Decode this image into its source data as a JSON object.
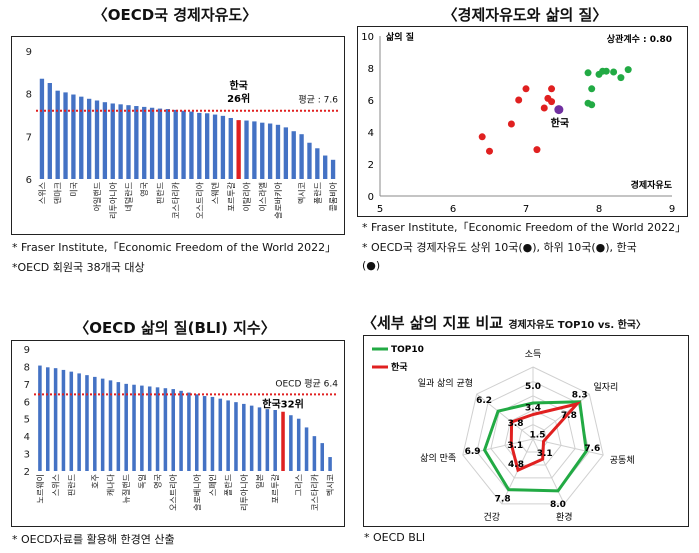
{
  "titles": {
    "freedom": "〈OECD국 경제자유도〉",
    "scatter": "〈경제자유도와 삶의 질〉",
    "bli": "〈OECD 삶의 질(BLI) 지수〉",
    "radar_main": "〈세부 삶의 지표 비교",
    "radar_sub": "경제자유도 TOP10 vs. 한국〉"
  },
  "notes": {
    "freedom": [
      "* Fraser Institute,「Economic Freedom of the World 2022」",
      "*OECD 회원국 38개국 대상"
    ],
    "scatter": [
      "* Fraser Institute,「Economic Freedom of the World 2022」",
      "* OECD국 경제자유도 상위 10국(●), 하위 10국(●), 한국",
      "(●)"
    ],
    "bli": [
      "* OECD자료를 활용해 한경연 산출"
    ],
    "radar": [
      "* OECD BLI"
    ]
  },
  "chart_data": [
    {
      "type": "bar",
      "title": "OECD국 경제자유도",
      "ylim": [
        6,
        9
      ],
      "yticks": [
        6,
        7,
        8,
        9
      ],
      "bar_color": "#4472c4",
      "highlight_color": "#e02020",
      "highlight_label": "한국",
      "highlight_label2": "26위",
      "reference_line": {
        "value": 7.6,
        "label": "평균 : 7.6",
        "color": "#e02020"
      },
      "labeled_categories": [
        "스위스",
        "덴마크",
        "미국",
        "아일랜드",
        "리투아니아",
        "네덜란드",
        "영국",
        "핀란드",
        "코스타리카",
        "오스트리아",
        "스웨덴",
        "포르투갈",
        "이탈리아",
        "이스라엘",
        "슬로바키아",
        "멕시코",
        "폴란드",
        "콜롬비아"
      ],
      "values": [
        8.35,
        8.25,
        8.07,
        8.03,
        7.98,
        7.93,
        7.88,
        7.84,
        7.8,
        7.77,
        7.75,
        7.73,
        7.71,
        7.69,
        7.67,
        7.65,
        7.64,
        7.62,
        7.6,
        7.58,
        7.55,
        7.54,
        7.51,
        7.48,
        7.43,
        7.38,
        7.37,
        7.35,
        7.32,
        7.3,
        7.27,
        7.21,
        7.12,
        7.05,
        6.85,
        6.72,
        6.55,
        6.45
      ],
      "highlight_index": 25
    },
    {
      "type": "scatter",
      "title": "경제자유도와 삶의 질",
      "ylabel": "삶의 질",
      "xlabel": "경제자유도",
      "annotation": "상관계수 : 0.80",
      "xlim": [
        5,
        9
      ],
      "ylim": [
        0,
        10
      ],
      "xticks": [
        5,
        6,
        7,
        8,
        9
      ],
      "yticks": [
        0,
        2,
        4,
        6,
        8,
        10
      ],
      "series": [
        {
          "color": "#22aa44",
          "points": [
            [
              7.85,
              7.7
            ],
            [
              8.0,
              7.6
            ],
            [
              8.05,
              7.8
            ],
            [
              8.1,
              7.8
            ],
            [
              8.2,
              7.75
            ],
            [
              8.3,
              7.4
            ],
            [
              8.4,
              7.9
            ],
            [
              7.9,
              6.7
            ],
            [
              7.85,
              5.8
            ],
            [
              7.9,
              5.7
            ]
          ]
        },
        {
          "color": "#e02020",
          "points": [
            [
              6.4,
              3.7
            ],
            [
              6.5,
              2.8
            ],
            [
              6.8,
              4.5
            ],
            [
              6.9,
              6.0
            ],
            [
              7.0,
              6.7
            ],
            [
              7.15,
              2.9
            ],
            [
              7.25,
              5.5
            ],
            [
              7.35,
              5.9
            ],
            [
              7.35,
              6.7
            ],
            [
              7.3,
              6.1
            ]
          ]
        },
        {
          "color": "#7030a0",
          "points": [
            [
              7.45,
              5.4
            ]
          ],
          "label": "한국"
        }
      ]
    },
    {
      "type": "bar",
      "title": "OECD 삶의 질(BLI) 지수",
      "ylim": [
        2,
        9
      ],
      "yticks": [
        2,
        3,
        4,
        5,
        6,
        7,
        8,
        9
      ],
      "bar_color": "#4472c4",
      "highlight_color": "#e02020",
      "highlight_label": "한국32위",
      "reference_line": {
        "value": 6.4,
        "label": "OECD 평균 6.4",
        "color": "#e02020"
      },
      "labeled_categories": [
        "노르웨이",
        "스위스",
        "핀란드",
        "호주",
        "캐나다",
        "뉴질랜드",
        "독일",
        "영국",
        "오스트리아",
        "슬로베니아",
        "스페인",
        "폴란드",
        "리투아니아",
        "일본",
        "포르투갈",
        "그리스",
        "코스타리카",
        "멕시코"
      ],
      "values": [
        8.05,
        7.95,
        7.9,
        7.8,
        7.7,
        7.6,
        7.5,
        7.4,
        7.3,
        7.2,
        7.1,
        7.0,
        6.95,
        6.9,
        6.85,
        6.8,
        6.75,
        6.7,
        6.6,
        6.5,
        6.4,
        6.3,
        6.25,
        6.15,
        6.05,
        5.95,
        5.85,
        5.75,
        5.65,
        5.55,
        5.5,
        5.4,
        5.2,
        5.0,
        4.5,
        4.0,
        3.6,
        2.8
      ],
      "highlight_index": 31
    },
    {
      "type": "radar",
      "axes": [
        "소득",
        "일자리",
        "공동체",
        "환경",
        "건강",
        "삶의 만족",
        "일과 삶의 균형"
      ],
      "max": 10,
      "series": [
        {
          "name": "TOP10",
          "color": "#22aa44",
          "values": [
            5.0,
            8.3,
            7.6,
            8.0,
            7.8,
            6.9,
            6.2
          ]
        },
        {
          "name": "한국",
          "color": "#e02020",
          "values": [
            3.4,
            7.8,
            1.5,
            3.1,
            4.8,
            3.1,
            3.8
          ]
        }
      ]
    }
  ]
}
